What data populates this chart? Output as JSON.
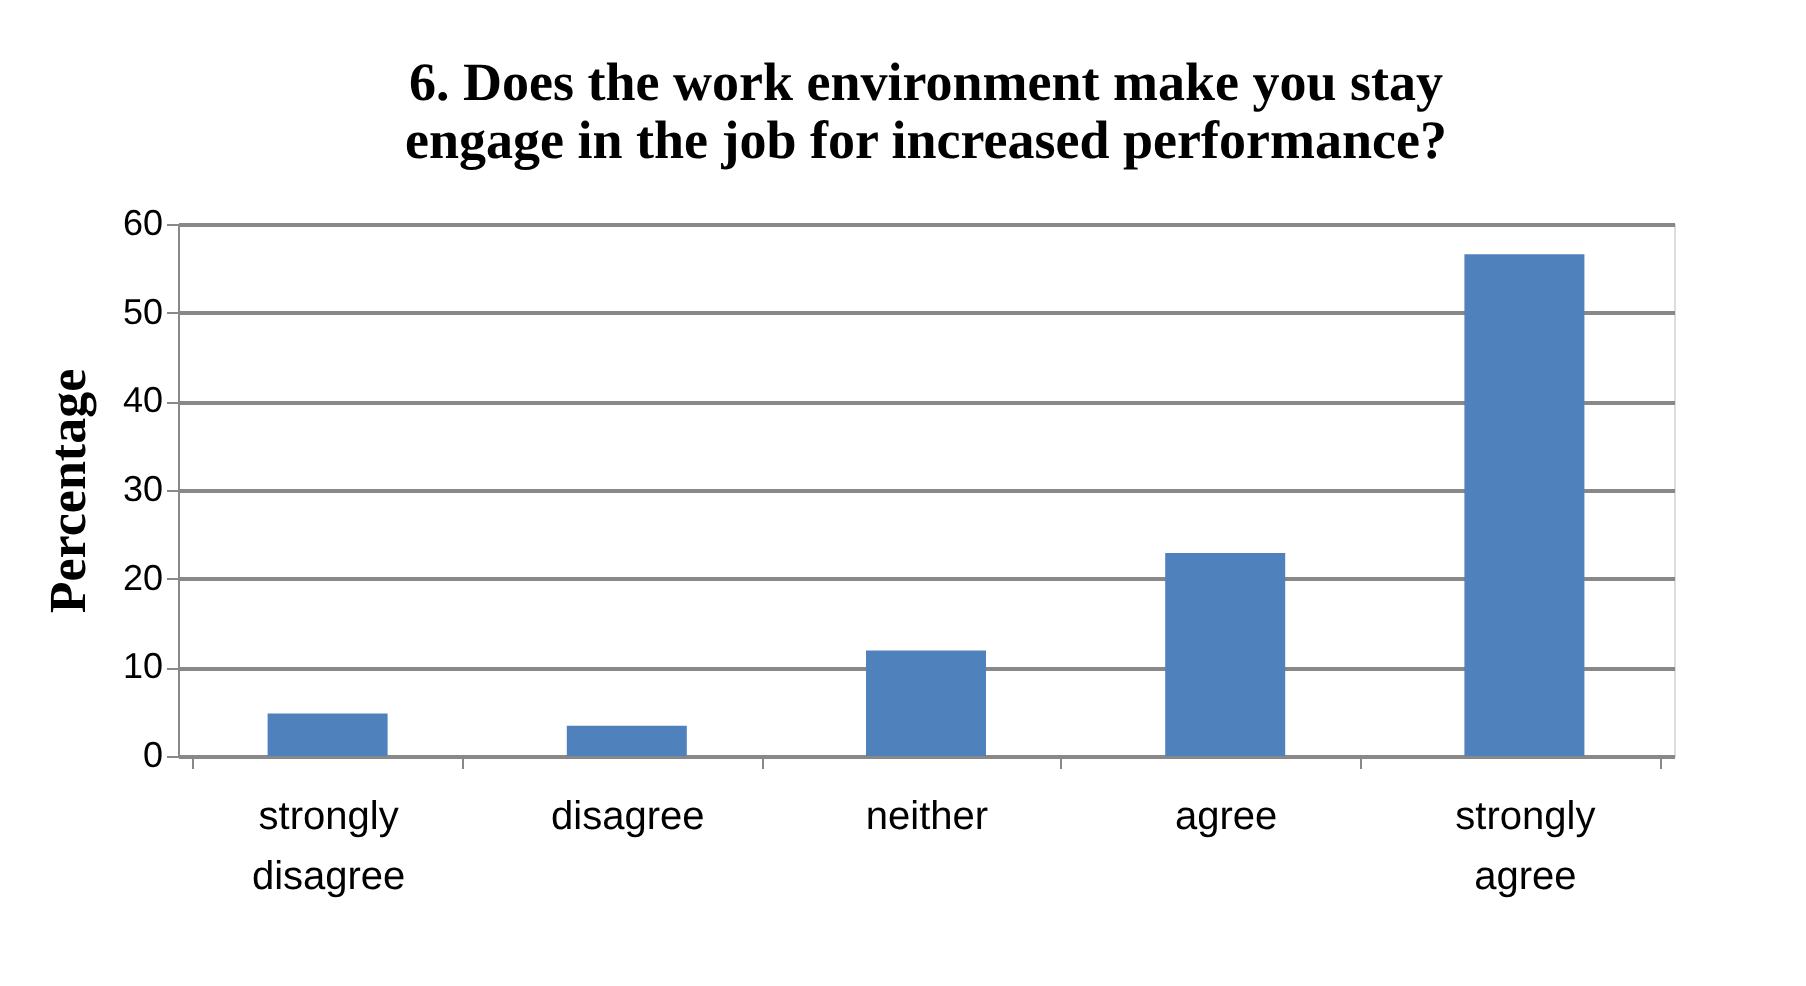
{
  "chart_data": {
    "type": "bar",
    "title": "6. Does the work environment make you stay\nengage in the job for increased performance?",
    "ylabel": "Percentage",
    "categories": [
      "strongly disagree",
      "disagree",
      "neither",
      "agree",
      "strongly agree"
    ],
    "values": [
      4.8,
      3.4,
      11.9,
      22.9,
      56.6
    ],
    "color": "#4f81bd",
    "ylim": [
      0,
      60
    ],
    "yticks": [
      0,
      10,
      20,
      30,
      40,
      50,
      60
    ],
    "grid": "y"
  }
}
